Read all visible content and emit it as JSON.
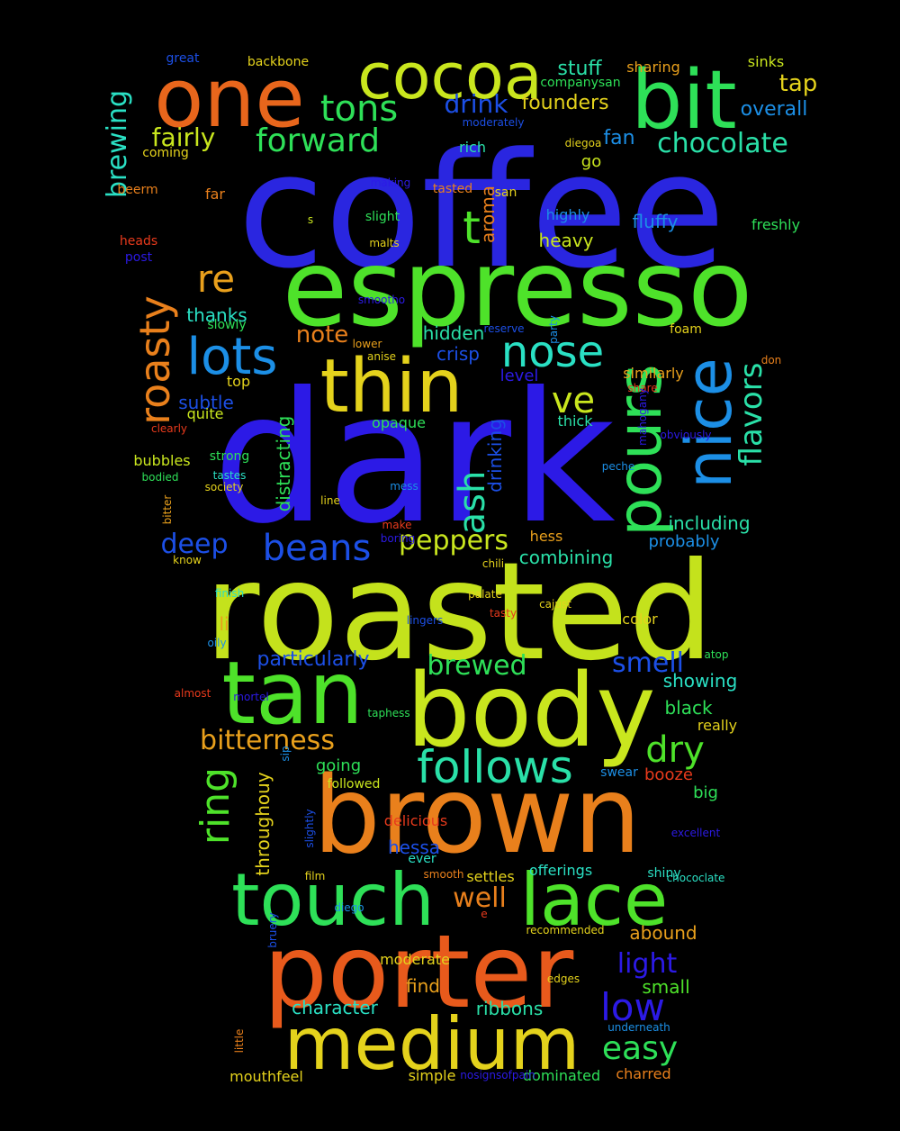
{
  "words": [
    {
      "text": "coffee",
      "color": "#2a26e0",
      "vertical": false
    },
    {
      "text": "dark",
      "color": "#2c1ae6",
      "vertical": false
    },
    {
      "text": "roasted",
      "color": "#c4e21c",
      "vertical": false
    },
    {
      "text": "espresso",
      "color": "#4ee22a",
      "vertical": false
    },
    {
      "text": "brown",
      "color": "#e9801c",
      "vertical": false
    },
    {
      "text": "body",
      "color": "#c9e61e",
      "vertical": false
    },
    {
      "text": "porter",
      "color": "#e85a1c",
      "vertical": false
    },
    {
      "text": "medium",
      "color": "#e4d21c",
      "vertical": false
    },
    {
      "text": "tan",
      "color": "#4ee22a",
      "vertical": false
    },
    {
      "text": "thin",
      "color": "#e4d21c",
      "vertical": false
    },
    {
      "text": "one",
      "color": "#e8661c",
      "vertical": false
    },
    {
      "text": "bit",
      "color": "#2ee058",
      "vertical": false
    },
    {
      "text": "cocoa",
      "color": "#c9e61e",
      "vertical": false
    },
    {
      "text": "touch",
      "color": "#2ee058",
      "vertical": false
    },
    {
      "text": "lace",
      "color": "#4ee22a",
      "vertical": false
    },
    {
      "text": "nice",
      "color": "#1c8fe6",
      "vertical": true
    },
    {
      "text": "pours",
      "color": "#2ee058",
      "vertical": true
    },
    {
      "text": "follows",
      "color": "#2ae0a8",
      "vertical": false
    },
    {
      "text": "lots",
      "color": "#1c8fe6",
      "vertical": false
    },
    {
      "text": "nose",
      "color": "#2ae0c4",
      "vertical": false
    },
    {
      "text": "roasty",
      "color": "#e9801c",
      "vertical": true
    },
    {
      "text": "ring",
      "color": "#4ee22a",
      "vertical": true
    },
    {
      "text": "brewing",
      "color": "#2ae0c4",
      "vertical": true
    },
    {
      "text": "flavors",
      "color": "#2ae0a8",
      "vertical": true
    },
    {
      "text": "ash",
      "color": "#2ae0a8",
      "vertical": true
    },
    {
      "text": "tons",
      "color": "#2ee058",
      "vertical": false
    },
    {
      "text": "forward",
      "color": "#2ee058",
      "vertical": false
    },
    {
      "text": "re",
      "color": "#e9a01c",
      "vertical": false
    },
    {
      "text": "t",
      "color": "#4ee22a",
      "vertical": false
    },
    {
      "text": "ve",
      "color": "#c9e61e",
      "vertical": false
    },
    {
      "text": "beans",
      "color": "#1c4fe6",
      "vertical": false
    },
    {
      "text": "low",
      "color": "#2c1ae6",
      "vertical": false
    },
    {
      "text": "easy",
      "color": "#2ee058",
      "vertical": false
    },
    {
      "text": "dry",
      "color": "#4ee22a",
      "vertical": false
    },
    {
      "text": "well",
      "color": "#e9801c",
      "vertical": false
    },
    {
      "text": "chocolate",
      "color": "#2ae0a8",
      "vertical": false
    },
    {
      "text": "peppers",
      "color": "#c9e61e",
      "vertical": false
    },
    {
      "text": "bitterness",
      "color": "#e9a01c",
      "vertical": false
    },
    {
      "text": "light",
      "color": "#2c1ae6",
      "vertical": false
    },
    {
      "text": "smell",
      "color": "#1c4fe6",
      "vertical": false
    },
    {
      "text": "brewed",
      "color": "#2ee058",
      "vertical": false
    },
    {
      "text": "drink",
      "color": "#1c4fe6",
      "vertical": false
    },
    {
      "text": "fairly",
      "color": "#c9e61e",
      "vertical": false
    },
    {
      "text": "deep",
      "color": "#1c4fe6",
      "vertical": false
    },
    {
      "text": "note",
      "color": "#e9801c",
      "vertical": false
    },
    {
      "text": "tap",
      "color": "#e4d21c",
      "vertical": false
    },
    {
      "text": "stuff",
      "color": "#2ae0a8",
      "vertical": false
    },
    {
      "text": "founders",
      "color": "#e4d21c",
      "vertical": false
    },
    {
      "text": "overall",
      "color": "#1c8fe6",
      "vertical": false
    },
    {
      "text": "fan",
      "color": "#1c8fe6",
      "vertical": false
    },
    {
      "text": "particularly",
      "color": "#1c4fe6",
      "vertical": false
    },
    {
      "text": "including",
      "color": "#2ae0a8",
      "vertical": false
    },
    {
      "text": "drinking",
      "color": "#1c4fe6",
      "vertical": true
    },
    {
      "text": "distracting",
      "color": "#2ee058",
      "vertical": true
    },
    {
      "text": "throughouy",
      "color": "#e4d21c",
      "vertical": true
    },
    {
      "text": "aroma",
      "color": "#e9801c",
      "vertical": true
    },
    {
      "text": "hidden",
      "color": "#2ae0a8",
      "vertical": false
    },
    {
      "text": "crisp",
      "color": "#1c4fe6",
      "vertical": false
    },
    {
      "text": "level",
      "color": "#2c1ae6",
      "vertical": false
    },
    {
      "text": "thanks",
      "color": "#2ae0c4",
      "vertical": false
    },
    {
      "text": "subtle",
      "color": "#1c4fe6",
      "vertical": false
    },
    {
      "text": "character",
      "color": "#2ae0c4",
      "vertical": false
    },
    {
      "text": "ribbons",
      "color": "#2ae0a8",
      "vertical": false
    },
    {
      "text": "find",
      "color": "#e9a01c",
      "vertical": false
    },
    {
      "text": "small",
      "color": "#4ee22a",
      "vertical": false
    },
    {
      "text": "abound",
      "color": "#e9a01c",
      "vertical": false
    },
    {
      "text": "hessa",
      "color": "#1c4fe6",
      "vertical": false
    },
    {
      "text": "going",
      "color": "#2ee058",
      "vertical": false
    },
    {
      "text": "black",
      "color": "#2ee058",
      "vertical": false
    },
    {
      "text": "showing",
      "color": "#2ae0c4",
      "vertical": false
    },
    {
      "text": "booze",
      "color": "#e83a1c",
      "vertical": false
    },
    {
      "text": "big",
      "color": "#2ee058",
      "vertical": false
    },
    {
      "text": "really",
      "color": "#e4d21c",
      "vertical": false
    },
    {
      "text": "heavy",
      "color": "#c9e61e",
      "vertical": false
    },
    {
      "text": "fluffy",
      "color": "#1c8fe6",
      "vertical": false
    },
    {
      "text": "highly",
      "color": "#1c8fe6",
      "vertical": false
    },
    {
      "text": "go",
      "color": "#c9e61e",
      "vertical": false
    },
    {
      "text": "li",
      "color": "#e9a01c",
      "vertical": false
    },
    {
      "text": "far",
      "color": "#e9801c",
      "vertical": false
    },
    {
      "text": "rich",
      "color": "#2ae0a8",
      "vertical": false
    },
    {
      "text": "probably",
      "color": "#1c8fe6",
      "vertical": false
    },
    {
      "text": "combining",
      "color": "#2ae0a8",
      "vertical": false
    },
    {
      "text": "hess",
      "color": "#e9a01c",
      "vertical": false
    },
    {
      "text": "color",
      "color": "#e4d21c",
      "vertical": false
    },
    {
      "text": "similarly",
      "color": "#e9a01c",
      "vertical": false
    },
    {
      "text": "thick",
      "color": "#2ae0a8",
      "vertical": false
    },
    {
      "text": "strong",
      "color": "#2ee058",
      "vertical": false
    },
    {
      "text": "bubbles",
      "color": "#c9e61e",
      "vertical": false
    },
    {
      "text": "quite",
      "color": "#c9e61e",
      "vertical": false
    },
    {
      "text": "top",
      "color": "#e4d21c",
      "vertical": false
    },
    {
      "text": "opaque",
      "color": "#2ee058",
      "vertical": false
    },
    {
      "text": "followed",
      "color": "#c9e61e",
      "vertical": false
    },
    {
      "text": "delicious",
      "color": "#e83a1c",
      "vertical": false
    },
    {
      "text": "mouthfeel",
      "color": "#e4d21c",
      "vertical": false
    },
    {
      "text": "simple",
      "color": "#e4d21c",
      "vertical": false
    },
    {
      "text": "dominated",
      "color": "#2ee058",
      "vertical": false
    },
    {
      "text": "charred",
      "color": "#e9801c",
      "vertical": false
    },
    {
      "text": "moderate",
      "color": "#e4d21c",
      "vertical": false
    },
    {
      "text": "offerings",
      "color": "#2ae0c4",
      "vertical": false
    },
    {
      "text": "shiny",
      "color": "#2ae0c4",
      "vertical": false
    },
    {
      "text": "swear",
      "color": "#1c8fe6",
      "vertical": false
    },
    {
      "text": "settles",
      "color": "#e4d21c",
      "vertical": false
    },
    {
      "text": "ever",
      "color": "#2ae0c4",
      "vertical": false
    },
    {
      "text": "heads",
      "color": "#e83a1c",
      "vertical": false
    },
    {
      "text": "sharing",
      "color": "#e9a01c",
      "vertical": false
    },
    {
      "text": "sinks",
      "color": "#c9e61e",
      "vertical": false
    },
    {
      "text": "great",
      "color": "#1c4fe6",
      "vertical": false
    },
    {
      "text": "backbone",
      "color": "#e4d21c",
      "vertical": false
    },
    {
      "text": "companysan",
      "color": "#2ee058",
      "vertical": false
    },
    {
      "text": "moderately",
      "color": "#1c4fe6",
      "vertical": false
    },
    {
      "text": "diegoa",
      "color": "#e4d21c",
      "vertical": false
    },
    {
      "text": "coming",
      "color": "#e4d21c",
      "vertical": false
    },
    {
      "text": "beerm",
      "color": "#e9801c",
      "vertical": false
    },
    {
      "text": "making",
      "color": "#2c1ae6",
      "vertical": false
    },
    {
      "text": "tasted",
      "color": "#e9801c",
      "vertical": false
    },
    {
      "text": "san",
      "color": "#e4d21c",
      "vertical": false
    },
    {
      "text": "freshly",
      "color": "#2ee058",
      "vertical": false
    },
    {
      "text": "s",
      "color": "#c9e61e",
      "vertical": false
    },
    {
      "text": "slight",
      "color": "#2ee058",
      "vertical": false
    },
    {
      "text": "malts",
      "color": "#e4d21c",
      "vertical": false
    },
    {
      "text": "post",
      "color": "#2c1ae6",
      "vertical": false
    },
    {
      "text": "slowly",
      "color": "#2ee058",
      "vertical": false
    },
    {
      "text": "smootho",
      "color": "#2c1ae6",
      "vertical": false
    },
    {
      "text": "reserve",
      "color": "#1c4fe6",
      "vertical": false
    },
    {
      "text": "party",
      "color": "#1c8fe6",
      "vertical": true
    },
    {
      "text": "foam",
      "color": "#e4d21c",
      "vertical": false
    },
    {
      "text": "lower",
      "color": "#e9a01c",
      "vertical": false
    },
    {
      "text": "anise",
      "color": "#e4d21c",
      "vertical": false
    },
    {
      "text": "don",
      "color": "#e9801c",
      "vertical": false
    },
    {
      "text": "share",
      "color": "#e83a1c",
      "vertical": false
    },
    {
      "text": "mahogany",
      "color": "#2c1ae6",
      "vertical": true
    },
    {
      "text": "clearly",
      "color": "#e83a1c",
      "vertical": false
    },
    {
      "text": "obviously",
      "color": "#2c1ae6",
      "vertical": false
    },
    {
      "text": "bodied",
      "color": "#2ee058",
      "vertical": false
    },
    {
      "text": "tastes",
      "color": "#2ae0c4",
      "vertical": false
    },
    {
      "text": "society",
      "color": "#e4d21c",
      "vertical": false
    },
    {
      "text": "peche",
      "color": "#1c8fe6",
      "vertical": false
    },
    {
      "text": "mess",
      "color": "#1c8fe6",
      "vertical": false
    },
    {
      "text": "line",
      "color": "#e4d21c",
      "vertical": false
    },
    {
      "text": "bitter",
      "color": "#e9a01c",
      "vertical": true
    },
    {
      "text": "make",
      "color": "#e83a1c",
      "vertical": false
    },
    {
      "text": "boring",
      "color": "#2c1ae6",
      "vertical": false
    },
    {
      "text": "know",
      "color": "#e4d21c",
      "vertical": false
    },
    {
      "text": "chili",
      "color": "#e4d21c",
      "vertical": false
    },
    {
      "text": "palate",
      "color": "#e4d21c",
      "vertical": false
    },
    {
      "text": "finish",
      "color": "#2ae0c4",
      "vertical": false
    },
    {
      "text": "lingers",
      "color": "#1c4fe6",
      "vertical": false
    },
    {
      "text": "tasty",
      "color": "#e83a1c",
      "vertical": false
    },
    {
      "text": "cajust",
      "color": "#e4d21c",
      "vertical": false
    },
    {
      "text": "oily",
      "color": "#1c8fe6",
      "vertical": false
    },
    {
      "text": "atop",
      "color": "#2ee058",
      "vertical": false
    },
    {
      "text": "almost",
      "color": "#e83a1c",
      "vertical": false
    },
    {
      "text": "mortel",
      "color": "#2c1ae6",
      "vertical": false
    },
    {
      "text": "taphess",
      "color": "#2ee058",
      "vertical": false
    },
    {
      "text": "sip",
      "color": "#1c8fe6",
      "vertical": true
    },
    {
      "text": "slightly",
      "color": "#1c4fe6",
      "vertical": true
    },
    {
      "text": "excellent",
      "color": "#2c1ae6",
      "vertical": false
    },
    {
      "text": "film",
      "color": "#e4d21c",
      "vertical": false
    },
    {
      "text": "smooth",
      "color": "#e9801c",
      "vertical": false
    },
    {
      "text": "chococlate",
      "color": "#2ae0c4",
      "vertical": false
    },
    {
      "text": "diego",
      "color": "#1c8fe6",
      "vertical": false
    },
    {
      "text": "bruery",
      "color": "#1c4fe6",
      "vertical": true
    },
    {
      "text": "e",
      "color": "#e83a1c",
      "vertical": false
    },
    {
      "text": "recommended",
      "color": "#e4d21c",
      "vertical": false
    },
    {
      "text": "edges",
      "color": "#e4d21c",
      "vertical": false
    },
    {
      "text": "underneath",
      "color": "#1c8fe6",
      "vertical": false
    },
    {
      "text": "little",
      "color": "#e9801c",
      "vertical": true
    },
    {
      "text": "nosignsofpain",
      "color": "#2c1ae6",
      "vertical": false
    },
    {
      "text": "tthis",
      "color": "#e83a1c",
      "vertical": false
    },
    {
      "text": "present",
      "color": "#1c4fe6",
      "vertical": false
    }
  ]
}
